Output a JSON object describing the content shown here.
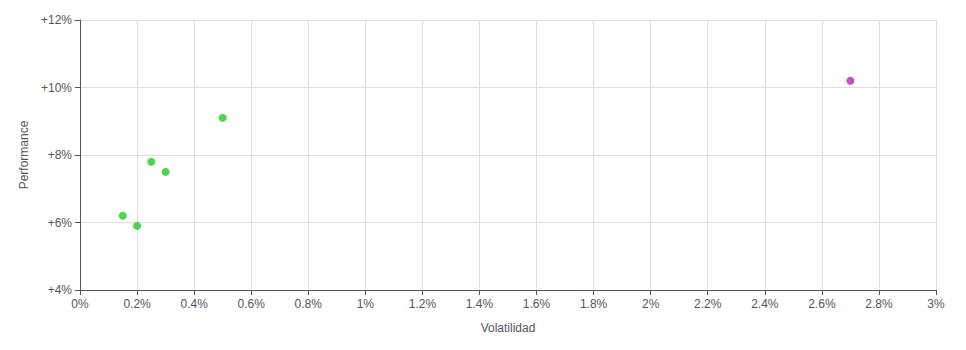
{
  "chart_data": {
    "type": "scatter",
    "xlabel": "Volatilidad",
    "ylabel": "Performance",
    "series": [
      {
        "color": "#22cc22",
        "x": [
          0.0015,
          0.002,
          0.0025,
          0.003,
          0.005
        ],
        "values": [
          0.062,
          0.059,
          0.078,
          0.075,
          0.091
        ]
      },
      {
        "color": "#bb22bb",
        "x": [
          0.027
        ],
        "values": [
          0.102
        ]
      }
    ],
    "xlim": [
      0,
      0.03
    ],
    "ylim": [
      0.04,
      0.12
    ],
    "xticks": [
      {
        "value": 0,
        "label": "0%"
      },
      {
        "value": 0.002,
        "label": "0.2%"
      },
      {
        "value": 0.004,
        "label": "0.4%"
      },
      {
        "value": 0.006,
        "label": "0.6%"
      },
      {
        "value": 0.008,
        "label": "0.8%"
      },
      {
        "value": 0.01,
        "label": "1%"
      },
      {
        "value": 0.012,
        "label": "1.2%"
      },
      {
        "value": 0.014,
        "label": "1.4%"
      },
      {
        "value": 0.016,
        "label": "1.6%"
      },
      {
        "value": 0.018,
        "label": "1.8%"
      },
      {
        "value": 0.02,
        "label": "2%"
      },
      {
        "value": 0.022,
        "label": "2.2%"
      },
      {
        "value": 0.024,
        "label": "2.4%"
      },
      {
        "value": 0.026,
        "label": "2.6%"
      },
      {
        "value": 0.028,
        "label": "2.8%"
      },
      {
        "value": 0.03,
        "label": "3%"
      }
    ],
    "yticks": [
      {
        "value": 0.04,
        "label": "+4%"
      },
      {
        "value": 0.06,
        "label": "+6%"
      },
      {
        "value": 0.08,
        "label": "+8%"
      },
      {
        "value": 0.1,
        "label": "+10%"
      },
      {
        "value": 0.12,
        "label": "+12%"
      }
    ],
    "grid": true
  }
}
